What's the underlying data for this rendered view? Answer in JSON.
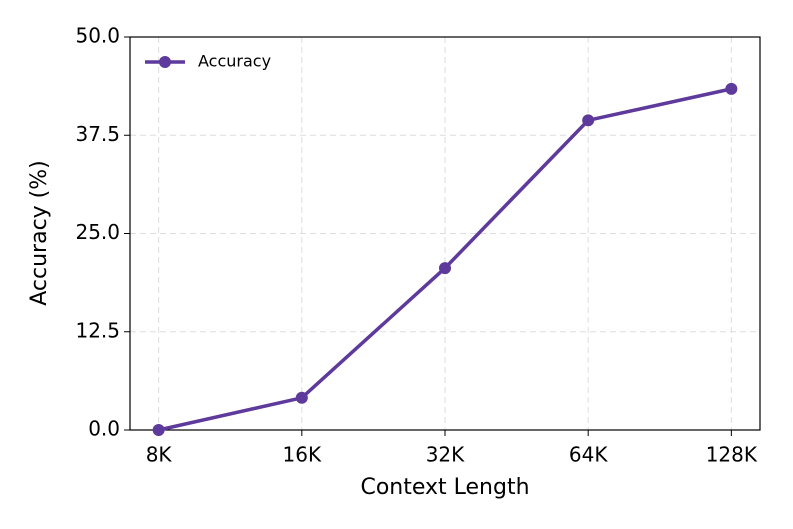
{
  "chart_data": {
    "type": "line",
    "xlabel": "Context Length",
    "ylabel": "Accuracy (%)",
    "categories": [
      "8K",
      "16K",
      "32K",
      "64K",
      "128K"
    ],
    "series": [
      {
        "name": "Accuracy",
        "color": "#5d3a9b",
        "values": [
          0,
          4.1,
          20.6,
          39.4,
          43.4
        ]
      }
    ],
    "ylim": [
      0,
      50
    ],
    "yticks": [
      {
        "value": 0,
        "label": "0.0"
      },
      12.5,
      {
        "value": 25,
        "label": "25.0"
      },
      37.5,
      {
        "value": 50,
        "label": "50.0"
      }
    ],
    "grid": true,
    "legend": "upper left"
  }
}
